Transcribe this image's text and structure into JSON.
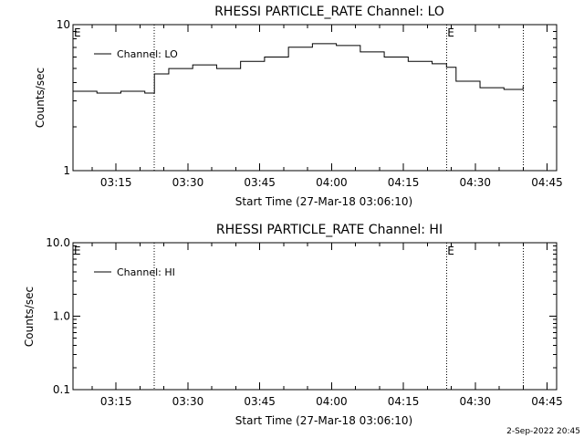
{
  "footer_date": "2-Sep-2022 20:45",
  "chart_data": [
    {
      "type": "line",
      "title": "RHESSI PARTICLE_RATE Channel: LO",
      "xlabel": "Start Time (27-Mar-18 03:06:10)",
      "ylabel": "Counts/sec",
      "yscale": "log",
      "ylim": [
        1,
        10
      ],
      "xlim": [
        "03:06",
        "04:47"
      ],
      "x_ticks": [
        "03:15",
        "03:30",
        "03:45",
        "04:00",
        "04:15",
        "04:30",
        "04:45"
      ],
      "y_ticks": [
        "1",
        "10"
      ],
      "grid": false,
      "legend_position": "top-left",
      "event_lines": [
        "03:23",
        "04:24",
        "04:40"
      ],
      "event_markers": [
        {
          "label": "E",
          "x": "03:06"
        },
        {
          "label": "E",
          "x": "04:24"
        }
      ],
      "series": [
        {
          "name": "Channel: LO",
          "x": [
            "03:06",
            "03:11",
            "03:16",
            "03:21",
            "03:23",
            "03:26",
            "03:31",
            "03:36",
            "03:41",
            "03:46",
            "03:51",
            "03:56",
            "04:01",
            "04:06",
            "04:11",
            "04:16",
            "04:21",
            "04:24",
            "04:26",
            "04:31",
            "04:36",
            "04:40"
          ],
          "values": [
            3.5,
            3.4,
            3.5,
            3.4,
            4.6,
            5.0,
            5.3,
            5.0,
            5.6,
            6.0,
            7.0,
            7.4,
            7.2,
            6.5,
            6.0,
            5.6,
            5.4,
            5.1,
            4.1,
            3.7,
            3.6,
            3.8
          ]
        }
      ]
    },
    {
      "type": "line",
      "title": "RHESSI PARTICLE_RATE Channel: HI",
      "xlabel": "Start Time (27-Mar-18 03:06:10)",
      "ylabel": "Counts/sec",
      "yscale": "log",
      "ylim": [
        0.1,
        10
      ],
      "xlim": [
        "03:06",
        "04:47"
      ],
      "x_ticks": [
        "03:15",
        "03:30",
        "03:45",
        "04:00",
        "04:15",
        "04:30",
        "04:45"
      ],
      "y_ticks": [
        "0.1",
        "1.0",
        "10.0"
      ],
      "grid": false,
      "legend_position": "top-left",
      "event_lines": [
        "03:23",
        "04:24",
        "04:40"
      ],
      "event_markers": [
        {
          "label": "E",
          "x": "03:06"
        },
        {
          "label": "E",
          "x": "04:24"
        }
      ],
      "series": [
        {
          "name": "Channel: HI",
          "x": [],
          "values": []
        }
      ]
    }
  ]
}
